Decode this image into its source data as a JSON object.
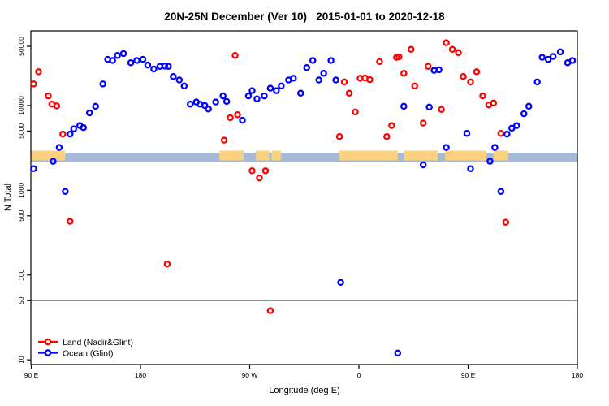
{
  "page": {
    "background": "#FFFFFF"
  },
  "chart_data": {
    "type": "scatter",
    "title": "20N-25N December (Ver 10)   2015-01-01 to 2020-12-18",
    "xlabel": "Longitude (deg E)",
    "ylabel": "N Total",
    "x_axis": {
      "min": 90,
      "max": 540,
      "ticks": [
        {
          "v": 90,
          "label": "90 E"
        },
        {
          "v": 180,
          "label": "180"
        },
        {
          "v": 270,
          "label": "90 W"
        },
        {
          "v": 360,
          "label": "0"
        },
        {
          "v": 450,
          "label": "90 E"
        },
        {
          "v": 540,
          "label": "180"
        }
      ]
    },
    "y_axis": {
      "scale": "log",
      "min": 9,
      "max": 76000,
      "ticks": [
        50000,
        10000,
        5000,
        1000,
        500,
        100,
        50,
        10
      ]
    },
    "reference_line_y": 50,
    "reference_line_color": "#808080",
    "map_strip": {
      "description": "land/ocean world strip for 20N-25N latitude band",
      "ocean_color": "#A5BAD8",
      "land_color": "#FBD180",
      "land_segments_deg": [
        [
          90,
          118
        ],
        [
          245,
          265
        ],
        [
          275,
          286
        ],
        [
          288,
          296
        ],
        [
          344,
          392
        ],
        [
          397,
          425
        ],
        [
          431,
          465
        ],
        [
          471,
          483
        ]
      ]
    },
    "legend_position": "bottom-left",
    "series": [
      {
        "name": "Land (Nadir&Glint)",
        "color": "#FF0000",
        "points": [
          [
            96,
            25000
          ],
          [
            92,
            18000
          ],
          [
            104,
            13000
          ],
          [
            107,
            10400
          ],
          [
            111,
            9900
          ],
          [
            116,
            4600
          ],
          [
            122,
            430
          ],
          [
            202,
            135
          ],
          [
            249,
            3900
          ],
          [
            254,
            7200
          ],
          [
            258,
            39000
          ],
          [
            260,
            7800
          ],
          [
            272,
            1700
          ],
          [
            278,
            1400
          ],
          [
            283,
            1700
          ],
          [
            287,
            38
          ],
          [
            344,
            4300
          ],
          [
            348,
            19000
          ],
          [
            352,
            14000
          ],
          [
            357,
            8400
          ],
          [
            361,
            21000
          ],
          [
            365,
            21100
          ],
          [
            369,
            20200
          ],
          [
            377,
            33000
          ],
          [
            383,
            4300
          ],
          [
            387,
            5800
          ],
          [
            391,
            37000
          ],
          [
            393,
            37500
          ],
          [
            397,
            24000
          ],
          [
            403,
            46000
          ],
          [
            406,
            17000
          ],
          [
            413,
            6200
          ],
          [
            417,
            29000
          ],
          [
            428,
            9000
          ],
          [
            432,
            55000
          ],
          [
            437,
            46000
          ],
          [
            442,
            42000
          ],
          [
            446,
            22000
          ],
          [
            452,
            19000
          ],
          [
            457,
            25000
          ],
          [
            462,
            13000
          ],
          [
            467,
            10200
          ],
          [
            471,
            10700
          ],
          [
            477,
            4700
          ],
          [
            481,
            420
          ]
        ]
      },
      {
        "name": "Ocean (Glint)",
        "color": "#0000FF",
        "points": [
          [
            92,
            1800
          ],
          [
            108,
            2200
          ],
          [
            113,
            3200
          ],
          [
            118,
            970
          ],
          [
            122,
            4600
          ],
          [
            125,
            5300
          ],
          [
            130,
            5800
          ],
          [
            133,
            5500
          ],
          [
            138,
            8200
          ],
          [
            143,
            9800
          ],
          [
            149,
            18000
          ],
          [
            153,
            35000
          ],
          [
            157,
            34000
          ],
          [
            161,
            39000
          ],
          [
            166,
            41000
          ],
          [
            172,
            32000
          ],
          [
            177,
            34000
          ],
          [
            182,
            35000
          ],
          [
            186,
            30000
          ],
          [
            191,
            27000
          ],
          [
            196,
            29000
          ],
          [
            200,
            29200
          ],
          [
            203,
            29000
          ],
          [
            207,
            22000
          ],
          [
            212,
            20000
          ],
          [
            216,
            17000
          ],
          [
            221,
            10400
          ],
          [
            226,
            11000
          ],
          [
            229,
            10400
          ],
          [
            233,
            10000
          ],
          [
            236,
            9100
          ],
          [
            242,
            11000
          ],
          [
            248,
            13000
          ],
          [
            251,
            11200
          ],
          [
            264,
            6700
          ],
          [
            269,
            13000
          ],
          [
            272,
            15000
          ],
          [
            276,
            12000
          ],
          [
            282,
            13000
          ],
          [
            287,
            16000
          ],
          [
            292,
            15000
          ],
          [
            296,
            17000
          ],
          [
            302,
            20000
          ],
          [
            306,
            21000
          ],
          [
            312,
            14000
          ],
          [
            317,
            28000
          ],
          [
            322,
            34000
          ],
          [
            327,
            20000
          ],
          [
            331,
            24000
          ],
          [
            337,
            34000
          ],
          [
            341,
            20000
          ],
          [
            345,
            82
          ],
          [
            392,
            12
          ],
          [
            397,
            9800
          ],
          [
            413,
            2000
          ],
          [
            418,
            9600
          ],
          [
            422,
            26000
          ],
          [
            426,
            26400
          ],
          [
            432,
            3200
          ],
          [
            449,
            4700
          ],
          [
            452,
            1800
          ],
          [
            468,
            2200
          ],
          [
            472,
            3200
          ],
          [
            477,
            970
          ],
          [
            482,
            4600
          ],
          [
            486,
            5400
          ],
          [
            490,
            5800
          ],
          [
            496,
            8000
          ],
          [
            500,
            9800
          ],
          [
            507,
            19000
          ],
          [
            511,
            37000
          ],
          [
            516,
            35000
          ],
          [
            520,
            38000
          ],
          [
            526,
            43000
          ],
          [
            532,
            32000
          ],
          [
            536,
            34000
          ]
        ]
      }
    ]
  }
}
